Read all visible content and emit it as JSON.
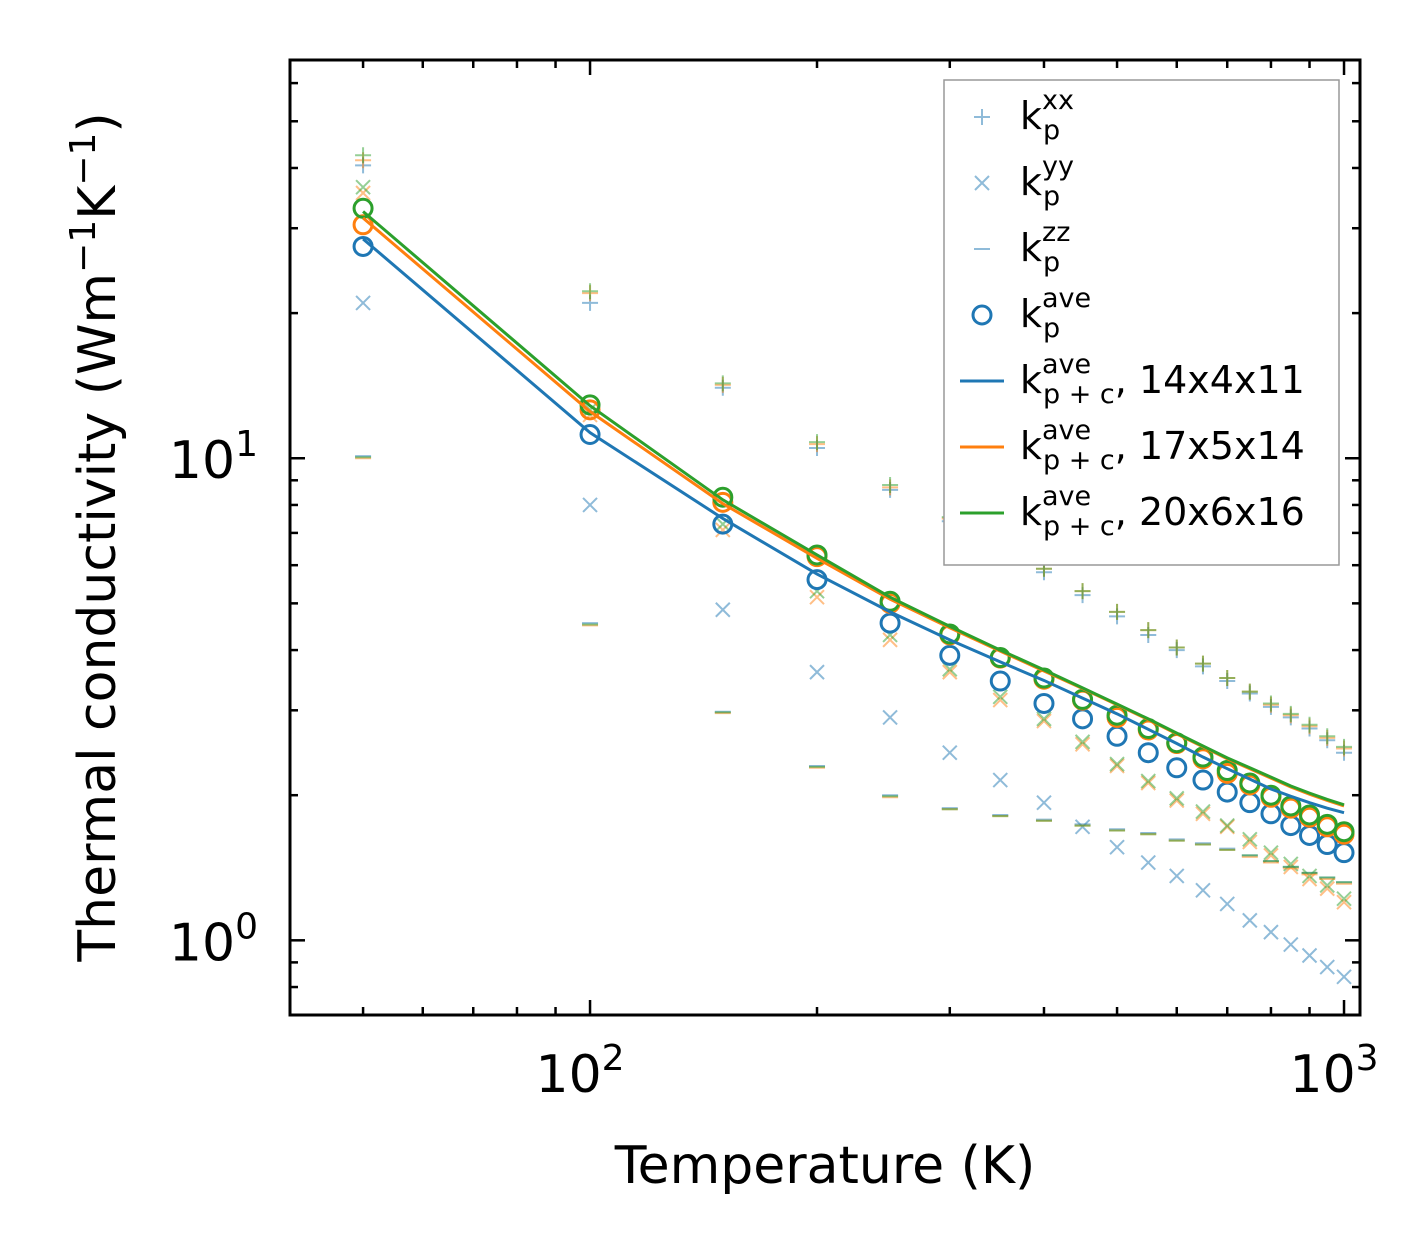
{
  "chart_data": {
    "type": "scatter",
    "xscale": "log",
    "yscale": "log",
    "xlabel": "Temperature (K)",
    "ylabel": "Thermal conductivity (Wm",
    "ylabel_exp1": "−1",
    "ylabel_mid": "K",
    "ylabel_exp2": "−1",
    "ylabel_end": ")",
    "xlim": [
      40,
      1050
    ],
    "ylim": [
      0.7,
      67
    ],
    "xticks": [
      {
        "base": "10",
        "exp": "2",
        "value": 100
      },
      {
        "base": "10",
        "exp": "3",
        "value": 1000
      }
    ],
    "yticks": [
      {
        "base": "10",
        "exp": "0",
        "value": 1
      },
      {
        "base": "10",
        "exp": "1",
        "value": 10
      }
    ],
    "x": [
      50,
      100,
      150,
      200,
      250,
      300,
      350,
      400,
      450,
      500,
      550,
      600,
      650,
      700,
      750,
      800,
      850,
      900,
      950,
      1000
    ],
    "colors": {
      "blue": "#1f77b4",
      "orange": "#ff7f0e",
      "green": "#2ca02c"
    },
    "series": [
      {
        "name": "κp^xx (14x4x11)",
        "marker": "plus",
        "color": "#1f77b4",
        "values": [
          40.5,
          21.0,
          14.0,
          10.5,
          8.6,
          7.4,
          6.5,
          5.8,
          5.2,
          4.7,
          4.3,
          4.0,
          3.7,
          3.45,
          3.25,
          3.05,
          2.9,
          2.75,
          2.6,
          2.45
        ]
      },
      {
        "name": "κp^xx (17x5x14)",
        "marker": "plus",
        "color": "#ff7f0e",
        "values": [
          41.5,
          22.0,
          14.2,
          10.7,
          8.7,
          7.5,
          6.6,
          5.9,
          5.3,
          4.8,
          4.4,
          4.05,
          3.75,
          3.5,
          3.28,
          3.08,
          2.93,
          2.78,
          2.63,
          2.5
        ]
      },
      {
        "name": "κp^xx (20x6x16)",
        "marker": "plus",
        "color": "#2ca02c",
        "values": [
          42.5,
          22.2,
          14.3,
          10.8,
          8.8,
          7.55,
          6.6,
          5.9,
          5.3,
          4.8,
          4.4,
          4.05,
          3.75,
          3.5,
          3.28,
          3.1,
          2.95,
          2.8,
          2.65,
          2.52
        ]
      },
      {
        "name": "κp^yy (14x4x11)",
        "marker": "x",
        "color": "#1f77b4",
        "values": [
          21.0,
          8.0,
          4.85,
          3.6,
          2.9,
          2.45,
          2.15,
          1.93,
          1.72,
          1.56,
          1.45,
          1.36,
          1.27,
          1.19,
          1.1,
          1.04,
          0.98,
          0.93,
          0.88,
          0.84
        ]
      },
      {
        "name": "κp^yy (17x5x14)",
        "marker": "x",
        "color": "#ff7f0e",
        "values": [
          35.5,
          12.3,
          7.1,
          5.15,
          4.2,
          3.6,
          3.15,
          2.85,
          2.55,
          2.3,
          2.12,
          1.95,
          1.83,
          1.72,
          1.6,
          1.5,
          1.42,
          1.34,
          1.28,
          1.2
        ]
      },
      {
        "name": "κp^yy (20x6x16)",
        "marker": "x",
        "color": "#2ca02c",
        "values": [
          36.5,
          12.6,
          7.3,
          5.3,
          4.3,
          3.65,
          3.2,
          2.88,
          2.58,
          2.32,
          2.14,
          1.97,
          1.85,
          1.73,
          1.62,
          1.52,
          1.44,
          1.36,
          1.3,
          1.22
        ]
      },
      {
        "name": "κp^zz (14x4x11)",
        "marker": "hline",
        "color": "#1f77b4",
        "values": [
          10.1,
          4.55,
          2.98,
          2.3,
          2.0,
          1.88,
          1.82,
          1.78,
          1.74,
          1.7,
          1.67,
          1.62,
          1.59,
          1.55,
          1.5,
          1.46,
          1.42,
          1.38,
          1.35,
          1.32
        ]
      },
      {
        "name": "κp^zz (17x5x14)",
        "marker": "hline",
        "color": "#ff7f0e",
        "values": [
          10.0,
          4.5,
          2.96,
          2.28,
          1.98,
          1.87,
          1.81,
          1.77,
          1.73,
          1.69,
          1.66,
          1.61,
          1.58,
          1.54,
          1.49,
          1.45,
          1.41,
          1.37,
          1.34,
          1.31
        ]
      },
      {
        "name": "κp^zz (20x6x16)",
        "marker": "hline",
        "color": "#2ca02c",
        "values": [
          10.05,
          4.52,
          2.97,
          2.29,
          1.99,
          1.87,
          1.81,
          1.77,
          1.73,
          1.69,
          1.66,
          1.61,
          1.58,
          1.54,
          1.5,
          1.46,
          1.42,
          1.38,
          1.35,
          1.32
        ]
      },
      {
        "name": "κp^ave (14x4x11)",
        "marker": "circle",
        "color": "#1f77b4",
        "values": [
          27.5,
          11.2,
          7.3,
          5.6,
          4.55,
          3.9,
          3.45,
          3.1,
          2.88,
          2.65,
          2.45,
          2.28,
          2.15,
          2.03,
          1.93,
          1.83,
          1.73,
          1.65,
          1.58,
          1.52
        ]
      },
      {
        "name": "κp^ave (17x5x14)",
        "marker": "circle",
        "color": "#ff7f0e",
        "values": [
          30.5,
          12.6,
          8.1,
          6.25,
          5.0,
          4.3,
          3.85,
          3.48,
          3.15,
          2.9,
          2.73,
          2.56,
          2.38,
          2.22,
          2.1,
          1.98,
          1.88,
          1.8,
          1.72,
          1.66
        ]
      },
      {
        "name": "κp^ave (20x6x16)",
        "marker": "circle",
        "color": "#2ca02c",
        "values": [
          33.0,
          12.9,
          8.3,
          6.3,
          5.05,
          4.32,
          3.86,
          3.5,
          3.16,
          2.93,
          2.75,
          2.57,
          2.4,
          2.25,
          2.12,
          2.0,
          1.9,
          1.82,
          1.74,
          1.68
        ]
      },
      {
        "name": "κp+c^ave, 14x4x11",
        "marker": "line",
        "color": "#1f77b4",
        "values": [
          28.5,
          11.3,
          7.5,
          5.75,
          4.8,
          4.2,
          3.78,
          3.46,
          3.18,
          2.95,
          2.74,
          2.56,
          2.4,
          2.27,
          2.16,
          2.06,
          1.99,
          1.93,
          1.88,
          1.84
        ]
      },
      {
        "name": "κp+c^ave, 17x5x14",
        "marker": "line",
        "color": "#ff7f0e",
        "values": [
          31.5,
          12.5,
          8.05,
          6.2,
          5.1,
          4.45,
          3.98,
          3.62,
          3.33,
          3.08,
          2.87,
          2.68,
          2.52,
          2.38,
          2.27,
          2.17,
          2.08,
          2.01,
          1.95,
          1.9
        ]
      },
      {
        "name": "κp+c^ave, 20x6x16",
        "marker": "line",
        "color": "#2ca02c",
        "values": [
          32.5,
          12.85,
          8.2,
          6.3,
          5.15,
          4.48,
          4.0,
          3.64,
          3.34,
          3.09,
          2.88,
          2.69,
          2.53,
          2.39,
          2.28,
          2.18,
          2.09,
          2.02,
          1.96,
          1.91
        ]
      }
    ],
    "legend": {
      "position": "top-right",
      "entries": [
        {
          "symbol": "k",
          "sub": "p",
          "sup": "xx",
          "suffix": "",
          "marker": "plus",
          "color": "#1f77b4"
        },
        {
          "symbol": "k",
          "sub": "p",
          "sup": "yy",
          "suffix": "",
          "marker": "x",
          "color": "#1f77b4"
        },
        {
          "symbol": "k",
          "sub": "p",
          "sup": "zz",
          "suffix": "",
          "marker": "hline",
          "color": "#1f77b4"
        },
        {
          "symbol": "k",
          "sub": "p",
          "sup": "ave",
          "suffix": "",
          "marker": "circle",
          "color": "#1f77b4"
        },
        {
          "symbol": "k",
          "sub": "p + c",
          "sup": "ave",
          "suffix": ", 14x4x11",
          "marker": "line",
          "color": "#1f77b4"
        },
        {
          "symbol": "k",
          "sub": "p + c",
          "sup": "ave",
          "suffix": ", 17x5x14",
          "marker": "line",
          "color": "#ff7f0e"
        },
        {
          "symbol": "k",
          "sub": "p + c",
          "sup": "ave",
          "suffix": ", 20x6x16",
          "marker": "line",
          "color": "#2ca02c"
        }
      ]
    }
  }
}
